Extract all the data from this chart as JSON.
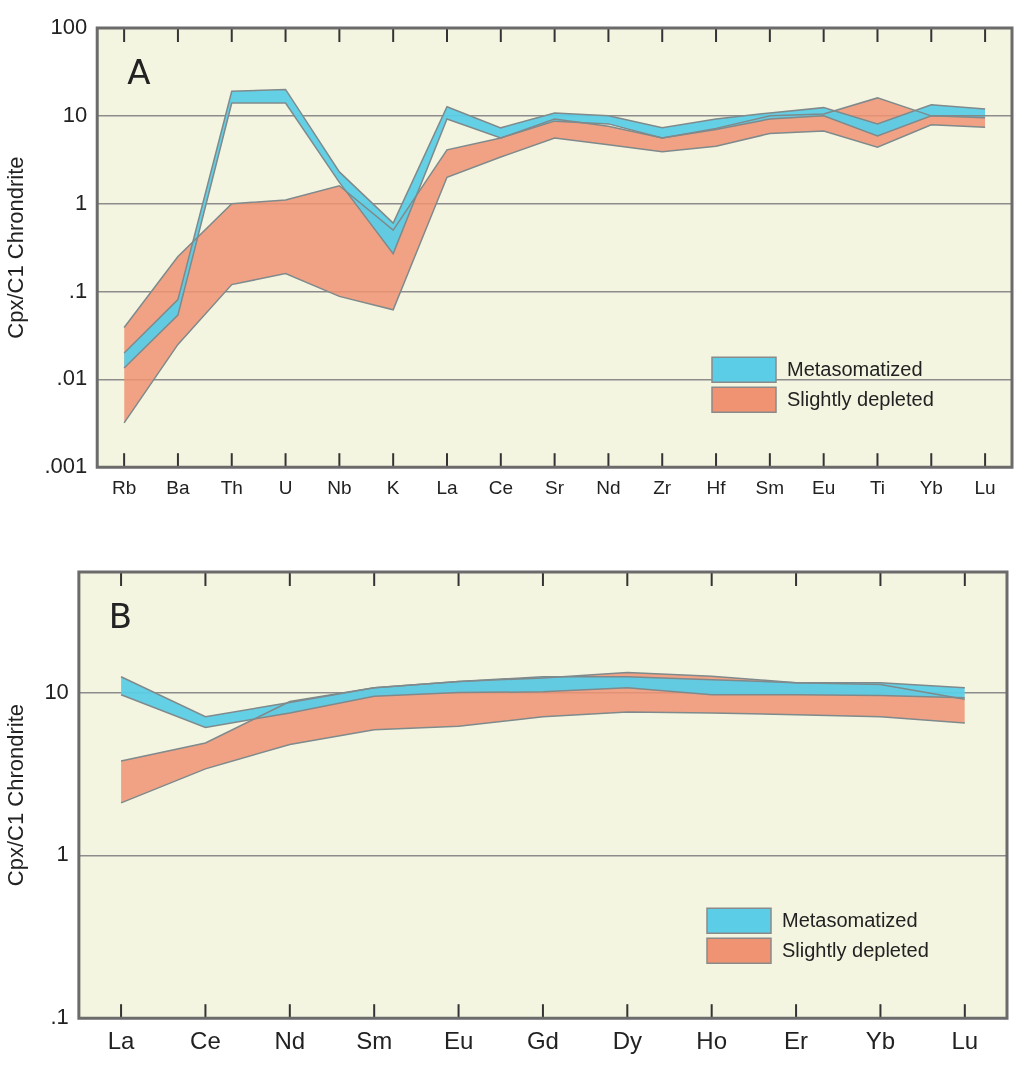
{
  "chart_data": [
    {
      "type": "area",
      "title": "A",
      "ylabel": "Cpx/C1 Chrondrite",
      "categories": [
        "Rb",
        "Ba",
        "Th",
        "U",
        "Nb",
        "K",
        "La",
        "Ce",
        "Sr",
        "Nd",
        "Zr",
        "Hf",
        "Sm",
        "Eu",
        "Ti",
        "Yb",
        "Lu"
      ],
      "series": [
        {
          "type": "line",
          "color": "#7f8a8c",
          "values": [
            0.0135,
            0.054,
            14,
            14,
            1.75,
            0.27,
            9.2,
            5.6,
            8.7,
            8.1,
            5.6,
            7,
            9.2,
            10,
            5.9,
            10,
            9.5
          ]
        },
        {
          "name": "Metasomatized",
          "color": "#5bcde6",
          "values": [
            0.02,
            0.081,
            19,
            20,
            2.3,
            0.6,
            12.7,
            7.3,
            10.8,
            10,
            7.3,
            9.2,
            10.8,
            12.4,
            8.1,
            13.4,
            12
          ]
        },
        {
          "type": "line",
          "color": "#7f8a8c",
          "values": [
            0.0032,
            0.025,
            0.12,
            0.16,
            0.088,
            0.062,
            2,
            3.4,
            5.6,
            4.7,
            3.9,
            4.5,
            6.3,
            6.7,
            4.4,
            7.9,
            7.4
          ]
        },
        {
          "name": "Slightly depleted",
          "color": "#f09373",
          "values": [
            0.039,
            0.25,
            1,
            1.1,
            1.6,
            0.5,
            4.1,
            5.6,
            9.2,
            7.6,
            5.6,
            7.2,
            10,
            10.5,
            16,
            10,
            10
          ]
        }
      ],
      "log": "y",
      "ylim": [
        0.001,
        100
      ],
      "yticks": [
        {
          "value": 0.001,
          "label": ".001"
        },
        {
          "value": 0.01,
          "label": ".01"
        },
        {
          "value": 0.1,
          "label": ".1"
        },
        1,
        10,
        100
      ],
      "grid": "y",
      "legend": "bottom right"
    },
    {
      "type": "area",
      "title": "B",
      "ylabel": "Cpx/C1 Chrondrite",
      "categories": [
        "La",
        "Ce",
        "Nd",
        "Sm",
        "Eu",
        "Gd",
        "Dy",
        "Ho",
        "Er",
        "Yb",
        "Lu"
      ],
      "series": [
        {
          "type": "line",
          "color": "#7f8a8c",
          "values": [
            9.7,
            6.1,
            7.5,
            9.5,
            10,
            10.1,
            10.7,
            9.7,
            9.7,
            9.6,
            9.3
          ]
        },
        {
          "name": "Metasomatized",
          "color": "#5bcde6",
          "values": [
            12.5,
            7.1,
            8.7,
            10.7,
            11.7,
            12.5,
            12.5,
            12,
            11.5,
            11.5,
            10.7
          ]
        },
        {
          "type": "line",
          "color": "#7f8a8c",
          "values": [
            2.1,
            3.4,
            4.8,
            5.9,
            6.2,
            7.1,
            7.6,
            7.5,
            7.3,
            7.1,
            6.5
          ]
        },
        {
          "name": "Slightly depleted",
          "color": "#f09373",
          "values": [
            3.8,
            4.9,
            8.8,
            10.7,
            11.7,
            12.3,
            13.3,
            12.6,
            11.5,
            11.2,
            9.1
          ]
        }
      ],
      "log": "y",
      "ylim": [
        0.1,
        55
      ],
      "yticks": [
        {
          "value": 0.1,
          "label": ".1"
        },
        1,
        10
      ],
      "grid": "y",
      "legend": "bottom right"
    }
  ]
}
